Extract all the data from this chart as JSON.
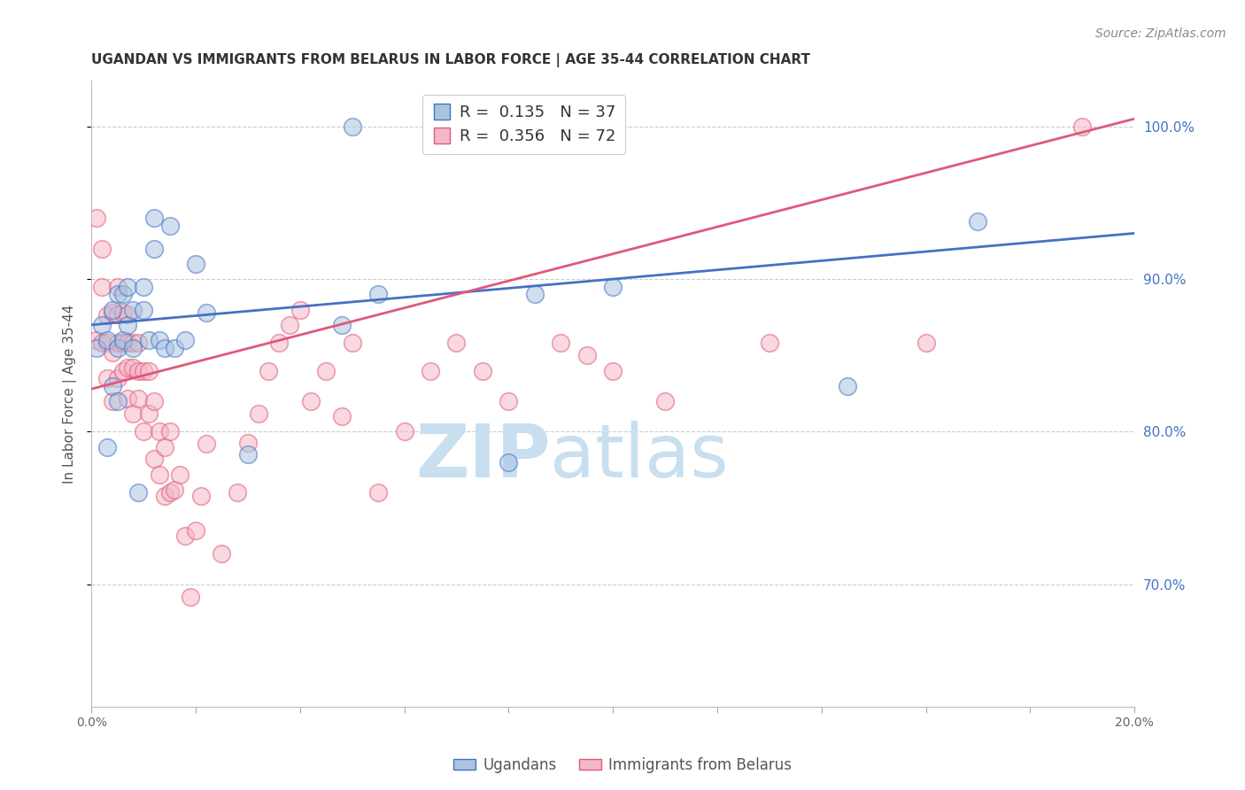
{
  "title": "UGANDAN VS IMMIGRANTS FROM BELARUS IN LABOR FORCE | AGE 35-44 CORRELATION CHART",
  "source": "Source: ZipAtlas.com",
  "ylabel": "In Labor Force | Age 35-44",
  "legend_blue_label": "Ugandans",
  "legend_pink_label": "Immigrants from Belarus",
  "blue_R": 0.135,
  "blue_N": 37,
  "pink_R": 0.356,
  "pink_N": 72,
  "xlim": [
    0.0,
    0.2
  ],
  "ylim": [
    0.62,
    1.03
  ],
  "yticks": [
    0.7,
    0.8,
    0.9,
    1.0
  ],
  "ytick_labels": [
    "70.0%",
    "80.0%",
    "90.0%",
    "100.0%"
  ],
  "xticks": [
    0.0,
    0.02,
    0.04,
    0.06,
    0.08,
    0.1,
    0.12,
    0.14,
    0.16,
    0.18,
    0.2
  ],
  "xtick_labels": [
    "0.0%",
    "",
    "",
    "",
    "",
    "",
    "",
    "",
    "",
    "",
    "20.0%"
  ],
  "grid_color": "#cccccc",
  "blue_color": "#aac4e0",
  "pink_color": "#f5b8c8",
  "blue_edge_color": "#4472c4",
  "pink_edge_color": "#e05878",
  "blue_line_color": "#4472c4",
  "pink_line_color": "#e05878",
  "blue_points_x": [
    0.001,
    0.002,
    0.003,
    0.003,
    0.004,
    0.004,
    0.005,
    0.005,
    0.005,
    0.006,
    0.006,
    0.007,
    0.007,
    0.008,
    0.008,
    0.009,
    0.01,
    0.01,
    0.011,
    0.012,
    0.012,
    0.013,
    0.014,
    0.015,
    0.016,
    0.018,
    0.02,
    0.022,
    0.03,
    0.048,
    0.05,
    0.055,
    0.08,
    0.085,
    0.1,
    0.145,
    0.17
  ],
  "blue_points_y": [
    0.855,
    0.87,
    0.79,
    0.86,
    0.83,
    0.88,
    0.82,
    0.855,
    0.89,
    0.86,
    0.89,
    0.87,
    0.895,
    0.855,
    0.88,
    0.76,
    0.88,
    0.895,
    0.86,
    0.92,
    0.94,
    0.86,
    0.855,
    0.935,
    0.855,
    0.86,
    0.91,
    0.878,
    0.785,
    0.87,
    1.0,
    0.89,
    0.78,
    0.89,
    0.895,
    0.83,
    0.938
  ],
  "pink_points_x": [
    0.001,
    0.001,
    0.002,
    0.002,
    0.002,
    0.003,
    0.003,
    0.003,
    0.004,
    0.004,
    0.004,
    0.005,
    0.005,
    0.005,
    0.005,
    0.006,
    0.006,
    0.006,
    0.007,
    0.007,
    0.007,
    0.007,
    0.008,
    0.008,
    0.008,
    0.009,
    0.009,
    0.009,
    0.01,
    0.01,
    0.011,
    0.011,
    0.012,
    0.012,
    0.013,
    0.013,
    0.014,
    0.014,
    0.015,
    0.015,
    0.016,
    0.017,
    0.018,
    0.019,
    0.02,
    0.021,
    0.022,
    0.025,
    0.028,
    0.03,
    0.032,
    0.034,
    0.036,
    0.038,
    0.04,
    0.042,
    0.045,
    0.048,
    0.05,
    0.055,
    0.06,
    0.065,
    0.07,
    0.075,
    0.08,
    0.09,
    0.095,
    0.1,
    0.11,
    0.13,
    0.16,
    0.19
  ],
  "pink_points_y": [
    0.86,
    0.94,
    0.858,
    0.895,
    0.92,
    0.835,
    0.858,
    0.876,
    0.82,
    0.852,
    0.878,
    0.835,
    0.858,
    0.877,
    0.895,
    0.84,
    0.858,
    0.878,
    0.822,
    0.842,
    0.858,
    0.877,
    0.812,
    0.842,
    0.858,
    0.822,
    0.84,
    0.858,
    0.8,
    0.84,
    0.812,
    0.84,
    0.782,
    0.82,
    0.772,
    0.8,
    0.758,
    0.79,
    0.76,
    0.8,
    0.762,
    0.772,
    0.732,
    0.692,
    0.735,
    0.758,
    0.792,
    0.72,
    0.76,
    0.793,
    0.812,
    0.84,
    0.858,
    0.87,
    0.88,
    0.82,
    0.84,
    0.81,
    0.858,
    0.76,
    0.8,
    0.84,
    0.858,
    0.84,
    0.82,
    0.858,
    0.85,
    0.84,
    0.82,
    0.858,
    0.858,
    1.0
  ],
  "blue_line_x": [
    0.0,
    0.2
  ],
  "blue_line_y": [
    0.87,
    0.93
  ],
  "pink_line_x": [
    0.0,
    0.2
  ],
  "pink_line_y": [
    0.828,
    1.005
  ],
  "watermark_zip": "ZIP",
  "watermark_atlas": "atlas",
  "watermark_color": "#c8dff0",
  "title_fontsize": 11,
  "axis_label_fontsize": 11,
  "tick_label_fontsize": 10,
  "legend_fontsize": 13,
  "source_fontsize": 10
}
